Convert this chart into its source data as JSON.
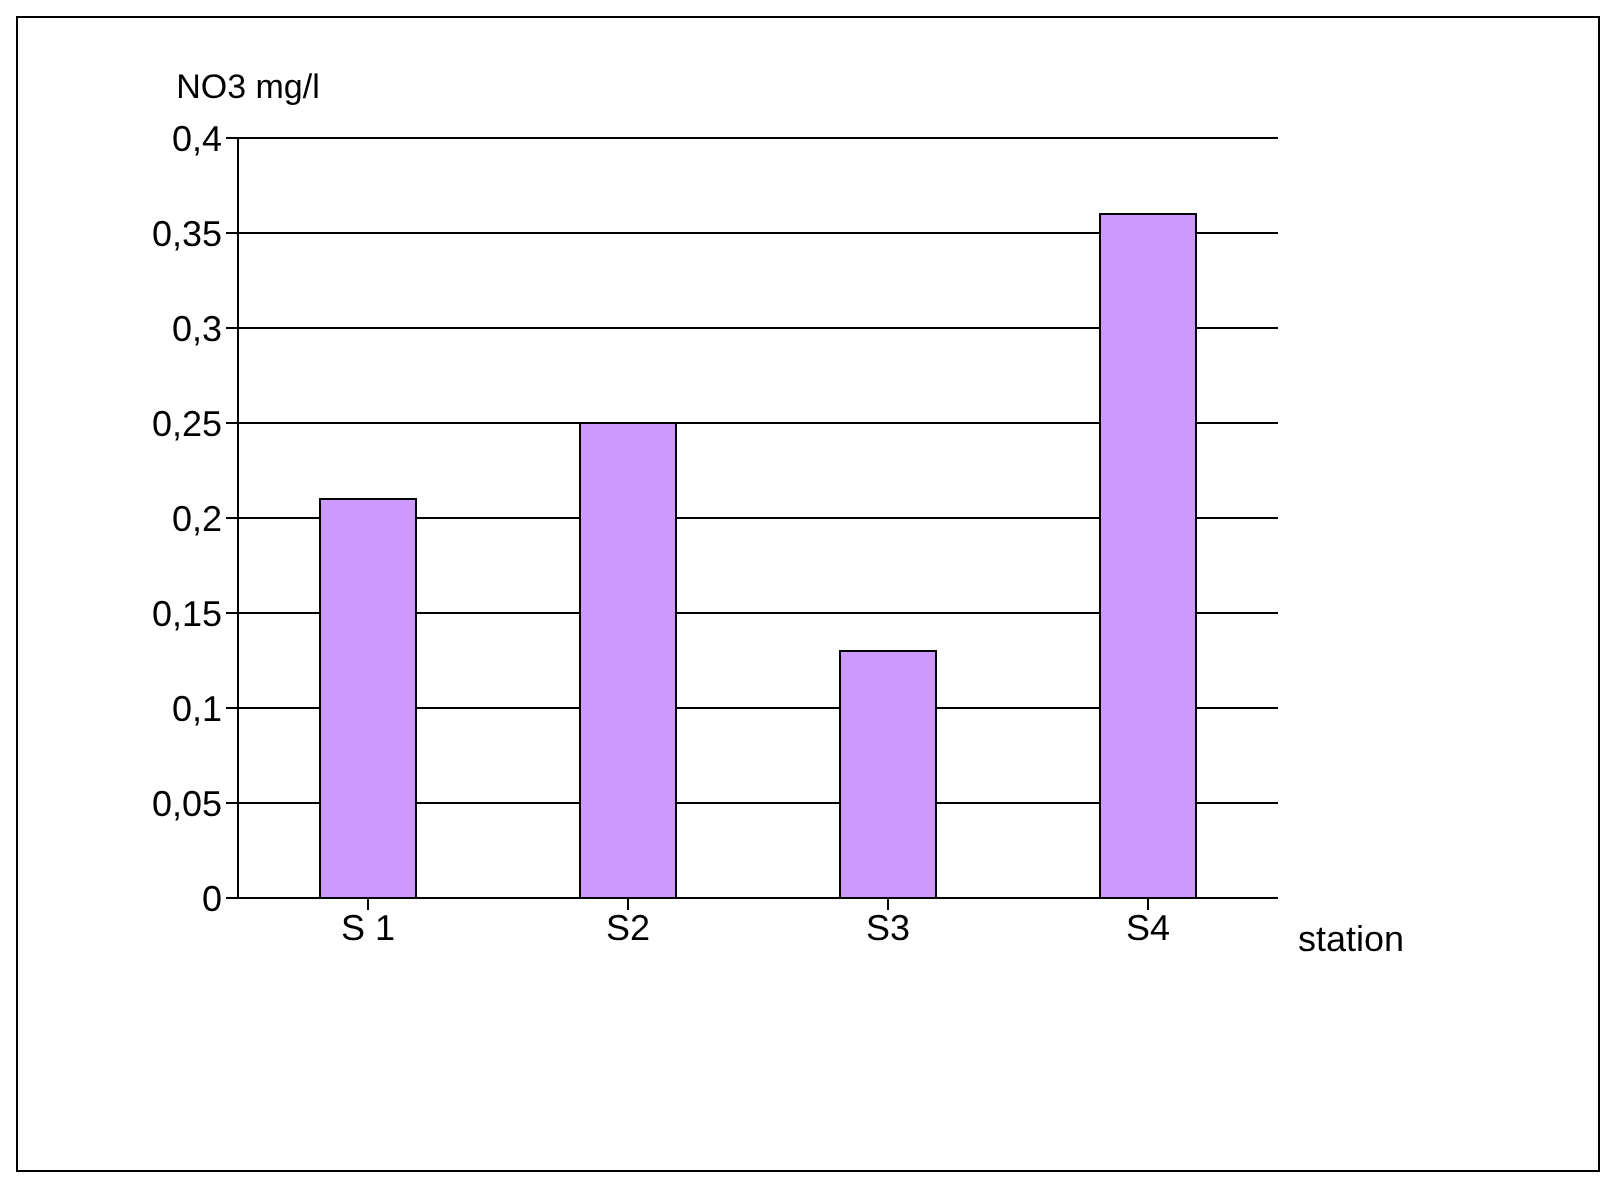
{
  "chart_data": {
    "type": "bar",
    "ylabel": "NO3 mg/l",
    "xlabel": "station",
    "categories": [
      "S 1",
      "S2",
      "S3",
      "S4"
    ],
    "values": [
      0.21,
      0.25,
      0.13,
      0.36
    ],
    "color": "#cc99ff",
    "ylim": [
      0,
      0.4
    ],
    "yticks": [
      0,
      {
        "value": 0.05,
        "label": "0,05"
      },
      {
        "value": 0.1,
        "label": "0,1"
      },
      {
        "value": 0.15,
        "label": "0,15"
      },
      {
        "value": 0.2,
        "label": "0,2"
      },
      {
        "value": 0.25,
        "label": "0,25"
      },
      {
        "value": 0.3,
        "label": "0,3"
      },
      {
        "value": 0.35,
        "label": "0,35"
      },
      {
        "value": 0.4,
        "label": "0,4"
      }
    ],
    "grid": "y"
  }
}
